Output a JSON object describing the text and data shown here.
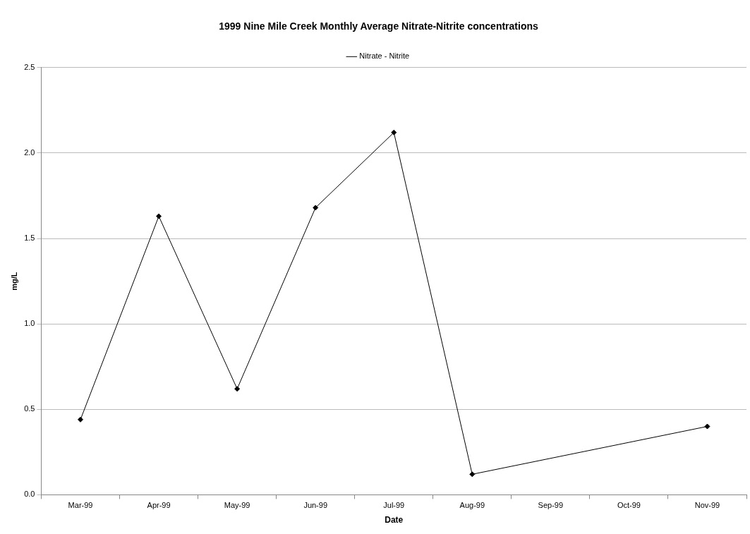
{
  "chart_data": {
    "type": "line",
    "title": "1999 Nine Mile Creek Monthly Average Nitrate-Nitrite concentrations",
    "xlabel": "Date",
    "ylabel": "mg/L",
    "categories": [
      "Mar-99",
      "Apr-99",
      "May-99",
      "Jun-99",
      "Jul-99",
      "Aug-99",
      "Sep-99",
      "Oct-99",
      "Nov-99"
    ],
    "series": [
      {
        "name": "Nitrate - Nitrite",
        "color": "#000000",
        "values": [
          0.44,
          1.63,
          0.62,
          1.68,
          2.12,
          0.12,
          null,
          null,
          0.4
        ]
      }
    ],
    "ylim": [
      0,
      2.5
    ],
    "yticks": [
      {
        "value": 0,
        "label": "0.0"
      },
      {
        "value": 0.5,
        "label": "0.5"
      },
      {
        "value": 1,
        "label": "1.0"
      },
      {
        "value": 1.5,
        "label": "1.5"
      },
      {
        "value": 2,
        "label": "2.0"
      },
      {
        "value": 2.5,
        "label": "2.5"
      }
    ],
    "grid": "y",
    "legend": "top",
    "marker": "diamond"
  }
}
